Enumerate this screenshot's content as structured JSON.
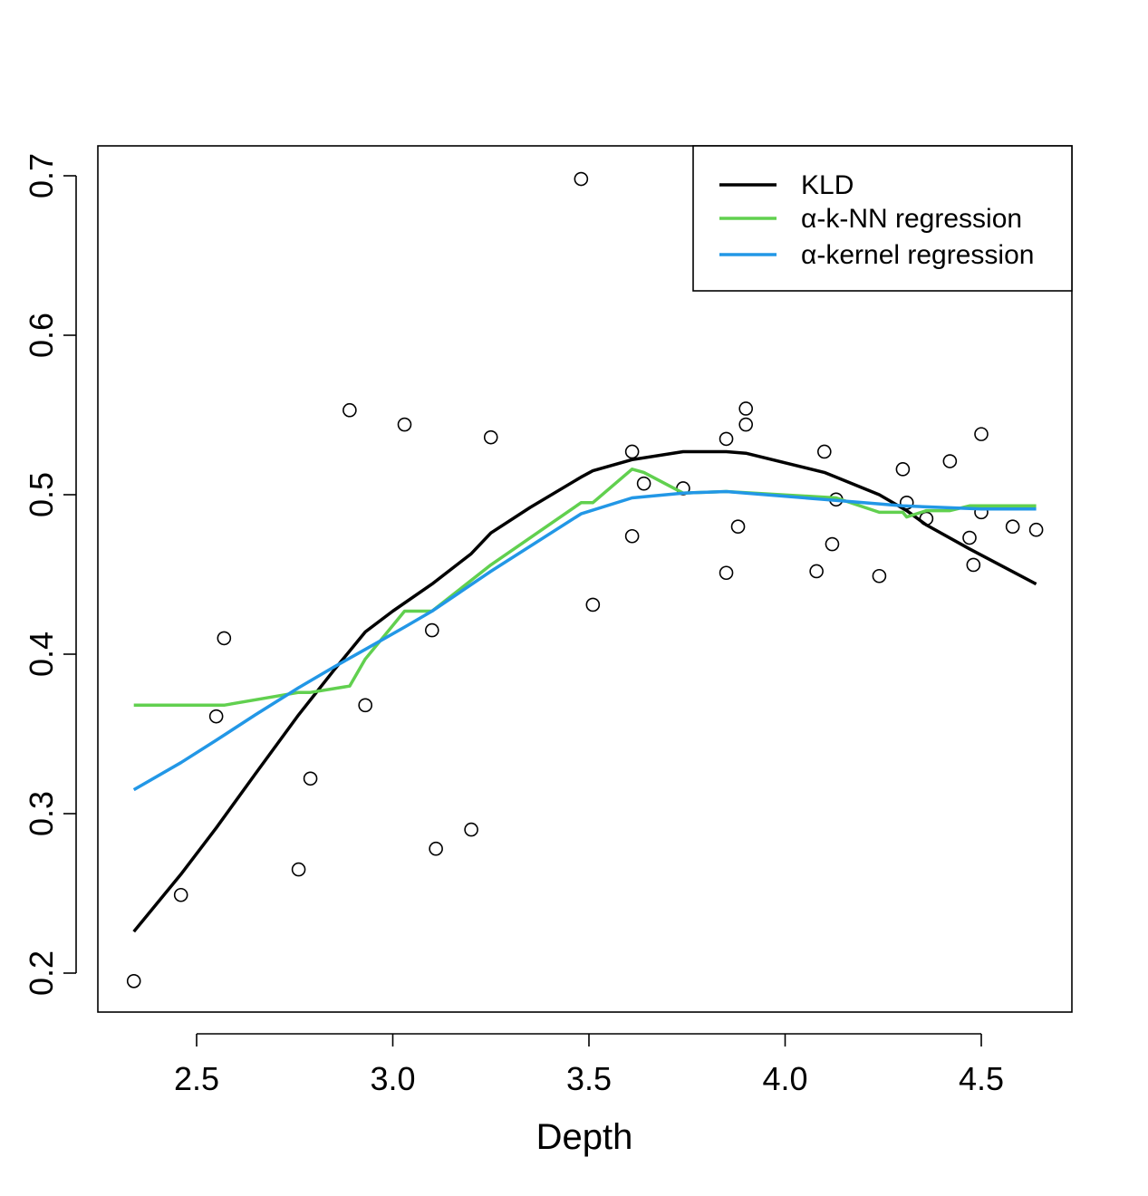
{
  "chart_data": {
    "type": "scatter",
    "title": "",
    "xlabel": "Depth",
    "ylabel": "",
    "xlim": [
      2.32,
      4.66
    ],
    "ylim": [
      0.18,
      0.72
    ],
    "x_ticks": [
      2.5,
      3.0,
      3.5,
      4.0,
      4.5
    ],
    "x_tick_labels": [
      "2.5",
      "3.0",
      "3.5",
      "4.0",
      "4.5"
    ],
    "y_ticks": [
      0.2,
      0.3,
      0.4,
      0.5,
      0.6,
      0.7
    ],
    "y_tick_labels": [
      "0.2",
      "0.3",
      "0.4",
      "0.5",
      "0.6",
      "0.7"
    ],
    "points": [
      [
        2.34,
        0.195
      ],
      [
        2.46,
        0.249
      ],
      [
        2.55,
        0.361
      ],
      [
        2.57,
        0.41
      ],
      [
        2.76,
        0.265
      ],
      [
        2.79,
        0.322
      ],
      [
        2.89,
        0.553
      ],
      [
        2.93,
        0.368
      ],
      [
        3.03,
        0.544
      ],
      [
        3.1,
        0.415
      ],
      [
        3.11,
        0.278
      ],
      [
        3.2,
        0.29
      ],
      [
        3.25,
        0.536
      ],
      [
        3.48,
        0.698
      ],
      [
        3.51,
        0.431
      ],
      [
        3.61,
        0.527
      ],
      [
        3.61,
        0.474
      ],
      [
        3.64,
        0.507
      ],
      [
        3.74,
        0.504
      ],
      [
        3.85,
        0.535
      ],
      [
        3.85,
        0.451
      ],
      [
        3.88,
        0.48
      ],
      [
        3.9,
        0.554
      ],
      [
        3.9,
        0.544
      ],
      [
        4.08,
        0.452
      ],
      [
        4.1,
        0.527
      ],
      [
        4.12,
        0.469
      ],
      [
        4.13,
        0.497
      ],
      [
        4.24,
        0.449
      ],
      [
        4.3,
        0.516
      ],
      [
        4.31,
        0.495
      ],
      [
        4.36,
        0.485
      ],
      [
        4.42,
        0.521
      ],
      [
        4.47,
        0.473
      ],
      [
        4.48,
        0.456
      ],
      [
        4.5,
        0.538
      ],
      [
        4.5,
        0.489
      ],
      [
        4.58,
        0.48
      ],
      [
        4.64,
        0.478
      ]
    ],
    "series": [
      {
        "name": "KLD",
        "color": "#000000",
        "x": [
          2.34,
          2.46,
          2.55,
          2.65,
          2.76,
          2.85,
          2.93,
          3.0,
          3.1,
          3.2,
          3.25,
          3.35,
          3.48,
          3.51,
          3.61,
          3.74,
          3.85,
          3.9,
          4.0,
          4.1,
          4.13,
          4.24,
          4.31,
          4.36,
          4.47,
          4.64
        ],
        "y": [
          0.226,
          0.262,
          0.291,
          0.325,
          0.362,
          0.39,
          0.414,
          0.427,
          0.444,
          0.463,
          0.476,
          0.492,
          0.511,
          0.515,
          0.522,
          0.527,
          0.527,
          0.526,
          0.52,
          0.514,
          0.511,
          0.5,
          0.49,
          0.481,
          0.466,
          0.444
        ]
      },
      {
        "name": "α-k-NN regression",
        "color": "#61D04F",
        "x": [
          2.34,
          2.57,
          2.76,
          2.79,
          2.89,
          2.93,
          3.03,
          3.1,
          3.25,
          3.48,
          3.51,
          3.61,
          3.64,
          3.74,
          3.85,
          4.13,
          4.24,
          4.3,
          4.31,
          4.36,
          4.42,
          4.47,
          4.64
        ],
        "y": [
          0.368,
          0.368,
          0.376,
          0.376,
          0.38,
          0.397,
          0.427,
          0.427,
          0.456,
          0.495,
          0.495,
          0.516,
          0.514,
          0.501,
          0.502,
          0.498,
          0.489,
          0.489,
          0.486,
          0.49,
          0.49,
          0.493,
          0.493
        ]
      },
      {
        "name": "α-kernel regression",
        "color": "#2297E6",
        "x": [
          2.34,
          2.46,
          2.55,
          2.65,
          2.76,
          2.85,
          2.93,
          3.03,
          3.1,
          3.25,
          3.48,
          3.61,
          3.74,
          3.85,
          3.9,
          4.1,
          4.3,
          4.5,
          4.64
        ],
        "y": [
          0.315,
          0.332,
          0.346,
          0.362,
          0.379,
          0.392,
          0.403,
          0.417,
          0.427,
          0.452,
          0.488,
          0.498,
          0.501,
          0.502,
          0.501,
          0.497,
          0.493,
          0.491,
          0.491
        ]
      }
    ],
    "legend": {
      "position": "top-right",
      "entries": [
        "KLD",
        "α-k-NN regression",
        "α-kernel regression"
      ]
    }
  }
}
